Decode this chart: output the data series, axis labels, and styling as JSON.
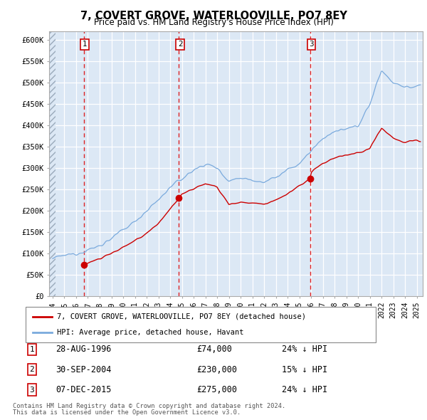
{
  "title": "7, COVERT GROVE, WATERLOOVILLE, PO7 8EY",
  "subtitle": "Price paid vs. HM Land Registry's House Price Index (HPI)",
  "ylim": [
    0,
    620000
  ],
  "yticks": [
    0,
    50000,
    100000,
    150000,
    200000,
    250000,
    300000,
    350000,
    400000,
    450000,
    500000,
    550000,
    600000
  ],
  "ytick_labels": [
    "£0",
    "£50K",
    "£100K",
    "£150K",
    "£200K",
    "£250K",
    "£300K",
    "£350K",
    "£400K",
    "£450K",
    "£500K",
    "£550K",
    "£600K"
  ],
  "xlim_start": 1993.7,
  "xlim_end": 2025.5,
  "transactions": [
    {
      "num": 1,
      "date": "28-AUG-1996",
      "price": 74000,
      "year": 1996.65,
      "hpi_pct": "24% ↓ HPI"
    },
    {
      "num": 2,
      "date": "30-SEP-2004",
      "price": 230000,
      "year": 2004.75,
      "hpi_pct": "15% ↓ HPI"
    },
    {
      "num": 3,
      "date": "07-DEC-2015",
      "price": 275000,
      "year": 2015.92,
      "hpi_pct": "24% ↓ HPI"
    }
  ],
  "red_line_color": "#cc0000",
  "blue_line_color": "#7aaadd",
  "marker_color": "#cc0000",
  "dashed_line_color": "#dd0000",
  "bg_color": "#dce8f5",
  "grid_color": "#ffffff",
  "legend_label_red": "7, COVERT GROVE, WATERLOOVILLE, PO7 8EY (detached house)",
  "legend_label_blue": "HPI: Average price, detached house, Havant",
  "footer1": "Contains HM Land Registry data © Crown copyright and database right 2024.",
  "footer2": "This data is licensed under the Open Government Licence v3.0.",
  "hpi_years_anchors": [
    1994,
    1995,
    1996,
    1997,
    1998,
    1999,
    2000,
    2001,
    2002,
    2003,
    2004,
    2005,
    2006,
    2007,
    2008,
    2009,
    2010,
    2011,
    2012,
    2013,
    2014,
    2015,
    2016,
    2017,
    2018,
    2019,
    2020,
    2021,
    2022,
    2023,
    2024,
    2025
  ],
  "hpi_prices_anchors": [
    88000,
    95000,
    100000,
    108000,
    118000,
    135000,
    155000,
    175000,
    200000,
    225000,
    255000,
    275000,
    295000,
    310000,
    300000,
    270000,
    278000,
    272000,
    268000,
    278000,
    295000,
    310000,
    340000,
    370000,
    385000,
    390000,
    400000,
    450000,
    530000,
    500000,
    490000,
    490000
  ],
  "red_years_anchors": [
    1996.65,
    1997,
    1998,
    1999,
    2000,
    2001,
    2002,
    2003,
    2004.75,
    2005,
    2006,
    2007,
    2008,
    2009,
    2010,
    2011,
    2012,
    2013,
    2014,
    2015.92,
    2016,
    2017,
    2018,
    2019,
    2020,
    2021,
    2022,
    2023,
    2024,
    2025
  ],
  "red_prices_anchors": [
    74000,
    78000,
    88000,
    100000,
    115000,
    128000,
    148000,
    170000,
    230000,
    240000,
    250000,
    265000,
    255000,
    215000,
    220000,
    218000,
    215000,
    225000,
    240000,
    275000,
    290000,
    310000,
    325000,
    330000,
    335000,
    345000,
    395000,
    370000,
    360000,
    365000
  ]
}
